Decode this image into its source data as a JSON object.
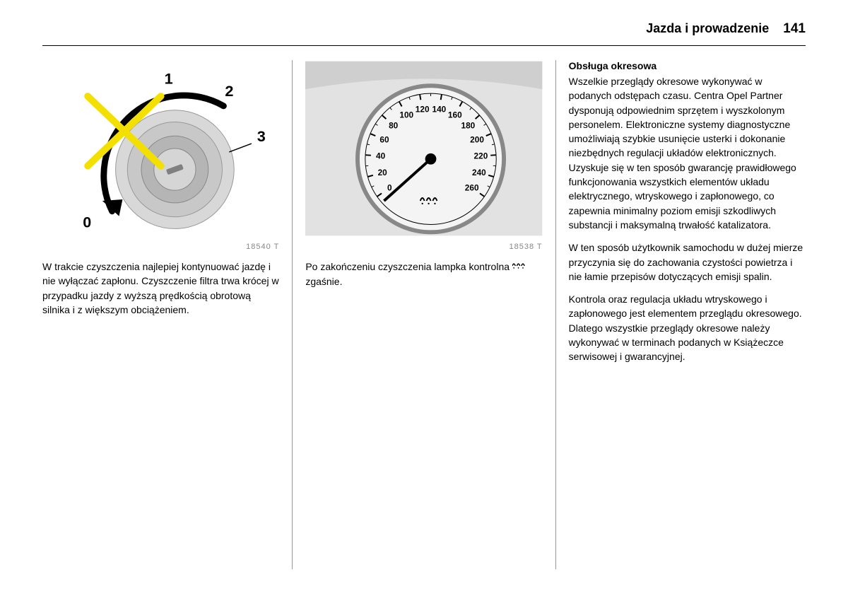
{
  "header": {
    "title": "Jazda i prowadzenie",
    "page_number": "141"
  },
  "column1": {
    "figure": {
      "caption": "18540 T",
      "labels": {
        "pos0": "0",
        "pos1": "1",
        "pos2": "2",
        "pos3": "3"
      },
      "colors": {
        "x_mark": "#f4e000",
        "arrow": "#000000",
        "switch_body": "#d8d8d8",
        "switch_inner": "#b5b5b5",
        "slot": "#808080"
      }
    },
    "paragraph1": "W trakcie czyszczenia najlepiej kontynuować jazdę i nie wyłączać zapłonu. Czyszczenie filtra trwa krócej w przypadku jazdy z wyższą prędkością obrotową silnika i z większym obciążeniem."
  },
  "column2": {
    "figure": {
      "caption": "18538 T",
      "speedometer": {
        "ticks": [
          "0",
          "20",
          "40",
          "60",
          "80",
          "100",
          "120",
          "140",
          "160",
          "180",
          "200",
          "220",
          "240",
          "260"
        ],
        "needle_value": 0,
        "colors": {
          "panel_bg": "#e2e2e2",
          "dial_face": "#f4f4f4",
          "dial_rim": "#888888",
          "tick_color": "#000000",
          "needle": "#000000",
          "warning_icon": "#000000"
        }
      }
    },
    "paragraph1_pre": "Po zakończeniu czyszczenia lampka kontrolna ",
    "paragraph1_post": " zgaśnie."
  },
  "column3": {
    "heading": "Obsługa okresowa",
    "paragraph1": "Wszelkie przeglądy okresowe wykonywać w podanych odstępach czasu. Centra Opel Partner dysponują odpowiednim sprzętem i wyszkolonym personelem. Elektroniczne systemy diagnostyczne umożliwiają szybkie usunięcie usterki i dokonanie niezbędnych regulacji układów elektronicznych. Uzyskuje się w ten sposób gwarancję prawidłowego funkcjonowania wszystkich elementów układu elektrycznego, wtryskowego i zapłonowego, co zapewnia minimalny poziom emisji szkodliwych substancji i maksymalną trwałość katalizatora.",
    "paragraph2": "W ten sposób użytkownik samochodu w dużej mierze przyczynia się do zachowania czystości powietrza i nie łamie przepisów dotyczących emisji spalin.",
    "paragraph3": "Kontrola oraz regulacja układu wtryskowego i zapłonowego jest elementem przeglądu okresowego. Dlatego wszystkie przeglądy okresowe należy wykonywać w terminach podanych w Książeczce serwisowej i gwarancyjnej."
  }
}
